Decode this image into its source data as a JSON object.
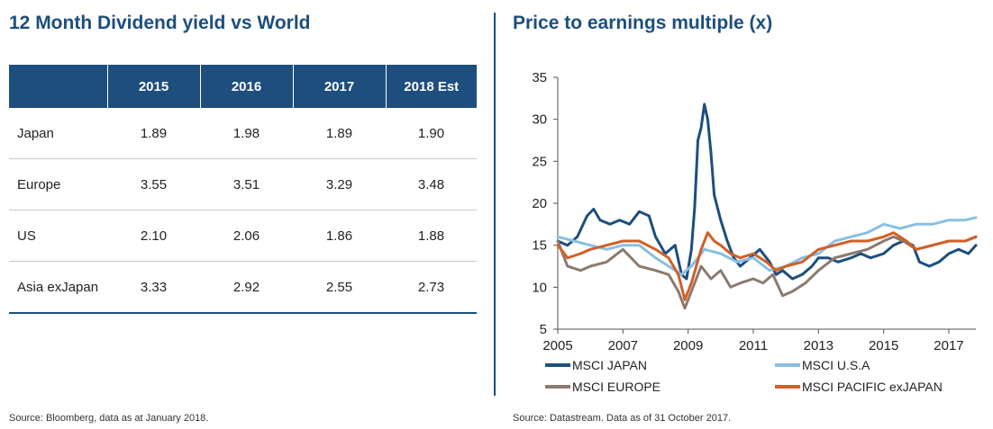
{
  "left": {
    "title": "12 Month Dividend yield vs World",
    "table": {
      "headers": [
        "",
        "2015",
        "2016",
        "2017",
        "2018 Est"
      ],
      "rows": [
        {
          "region": "Japan",
          "values": [
            "1.89",
            "1.98",
            "1.89",
            "1.90"
          ]
        },
        {
          "region": "Europe",
          "values": [
            "3.55",
            "3.51",
            "3.29",
            "3.48"
          ]
        },
        {
          "region": "US",
          "values": [
            "2.10",
            "2.06",
            "1.86",
            "1.88"
          ]
        },
        {
          "region": "Asia exJapan",
          "values": [
            "3.33",
            "2.92",
            "2.55",
            "2.73"
          ]
        }
      ]
    },
    "source": "Source: Bloomberg, data as at January 2018."
  },
  "right": {
    "title": "Price to earnings multiple (x)",
    "source": "Source: Datastream. Data as of 31 October 2017."
  },
  "chart_data": {
    "type": "line",
    "title": "Price to earnings multiple (x)",
    "xlabel": "",
    "ylabel": "",
    "xlim": [
      2005,
      2017.83
    ],
    "ylim": [
      5,
      35
    ],
    "yticks": [
      5,
      10,
      15,
      20,
      25,
      30,
      35
    ],
    "xticks": [
      2005,
      2007,
      2009,
      2011,
      2013,
      2015,
      2017
    ],
    "grid": false,
    "legend_position": "bottom",
    "series": [
      {
        "name": "MSCI JAPAN",
        "color": "#1d4e7e",
        "x": [
          2005,
          2005.3,
          2005.6,
          2005.9,
          2006.1,
          2006.3,
          2006.6,
          2006.9,
          2007.2,
          2007.5,
          2007.8,
          2008.0,
          2008.3,
          2008.6,
          2008.8,
          2008.95,
          2009.1,
          2009.2,
          2009.3,
          2009.4,
          2009.5,
          2009.6,
          2009.7,
          2009.8,
          2009.9,
          2010.0,
          2010.2,
          2010.4,
          2010.6,
          2010.9,
          2011.2,
          2011.5,
          2011.7,
          2011.9,
          2012.2,
          2012.5,
          2012.8,
          2013.0,
          2013.3,
          2013.6,
          2014.0,
          2014.3,
          2014.6,
          2015.0,
          2015.3,
          2015.6,
          2015.9,
          2016.1,
          2016.4,
          2016.7,
          2017.0,
          2017.3,
          2017.6,
          2017.83
        ],
        "values": [
          15.5,
          15.0,
          16.0,
          18.5,
          19.3,
          18.0,
          17.5,
          18.0,
          17.5,
          19.0,
          18.5,
          16.0,
          14.0,
          15.0,
          11.5,
          11.0,
          14.5,
          19.5,
          27.5,
          29.0,
          31.8,
          30.0,
          26.0,
          21.0,
          19.5,
          18.0,
          15.5,
          13.5,
          12.5,
          13.5,
          14.5,
          13.0,
          11.5,
          12.0,
          11.0,
          11.5,
          12.5,
          13.5,
          13.5,
          13.0,
          13.5,
          14.0,
          13.5,
          14.0,
          15.0,
          15.5,
          15.0,
          13.0,
          12.5,
          13.0,
          14.0,
          14.5,
          14.0,
          15.0
        ]
      },
      {
        "name": "MSCI U.S.A",
        "color": "#88bfe3",
        "x": [
          2005,
          2005.5,
          2006.0,
          2006.5,
          2007.0,
          2007.5,
          2008.0,
          2008.4,
          2008.8,
          2009.1,
          2009.5,
          2010.0,
          2010.5,
          2011.0,
          2011.5,
          2012.0,
          2012.5,
          2013.0,
          2013.5,
          2014.0,
          2014.5,
          2015.0,
          2015.5,
          2016.0,
          2016.5,
          2017.0,
          2017.5,
          2017.83
        ],
        "values": [
          16.0,
          15.5,
          15.0,
          14.5,
          15.0,
          15.0,
          13.5,
          12.5,
          11.5,
          12.5,
          14.5,
          14.0,
          13.0,
          13.5,
          12.0,
          12.5,
          13.5,
          14.0,
          15.5,
          16.0,
          16.5,
          17.5,
          17.0,
          17.5,
          17.5,
          18.0,
          18.0,
          18.3
        ]
      },
      {
        "name": "MSCI EUROPE",
        "color": "#8c7a6e",
        "x": [
          2005,
          2005.3,
          2005.7,
          2006.0,
          2006.5,
          2007.0,
          2007.5,
          2008.0,
          2008.4,
          2008.7,
          2008.9,
          2009.1,
          2009.4,
          2009.7,
          2010.0,
          2010.3,
          2010.6,
          2011.0,
          2011.3,
          2011.6,
          2011.9,
          2012.2,
          2012.6,
          2013.0,
          2013.5,
          2014.0,
          2014.5,
          2015.0,
          2015.3,
          2015.6,
          2016.0,
          2016.5,
          2017.0,
          2017.5,
          2017.83
        ],
        "values": [
          15.5,
          12.5,
          12.0,
          12.5,
          13.0,
          14.5,
          12.5,
          12.0,
          11.5,
          9.5,
          7.5,
          9.5,
          12.5,
          11.0,
          12.0,
          10.0,
          10.5,
          11.0,
          10.5,
          11.5,
          9.0,
          9.5,
          10.5,
          12.0,
          13.5,
          14.0,
          14.5,
          15.5,
          16.0,
          15.5,
          14.5,
          15.0,
          15.5,
          15.5,
          16.0
        ]
      },
      {
        "name": "MSCI PACIFIC exJAPAN",
        "color": "#d15f27",
        "x": [
          2005,
          2005.3,
          2005.7,
          2006.0,
          2006.5,
          2007.0,
          2007.5,
          2008.0,
          2008.4,
          2008.7,
          2008.9,
          2009.1,
          2009.4,
          2009.6,
          2009.8,
          2010.0,
          2010.3,
          2010.6,
          2011.0,
          2011.4,
          2011.7,
          2012.0,
          2012.5,
          2013.0,
          2013.5,
          2014.0,
          2014.5,
          2015.0,
          2015.3,
          2015.7,
          2016.0,
          2016.5,
          2017.0,
          2017.5,
          2017.83
        ],
        "values": [
          15.0,
          13.5,
          14.0,
          14.5,
          15.0,
          15.5,
          15.5,
          14.5,
          13.5,
          11.5,
          8.5,
          10.5,
          14.5,
          16.5,
          15.5,
          15.0,
          14.0,
          13.5,
          14.0,
          13.0,
          12.0,
          12.5,
          13.0,
          14.5,
          15.0,
          15.5,
          15.5,
          16.0,
          16.5,
          15.5,
          14.5,
          15.0,
          15.5,
          15.5,
          16.0
        ]
      }
    ]
  }
}
